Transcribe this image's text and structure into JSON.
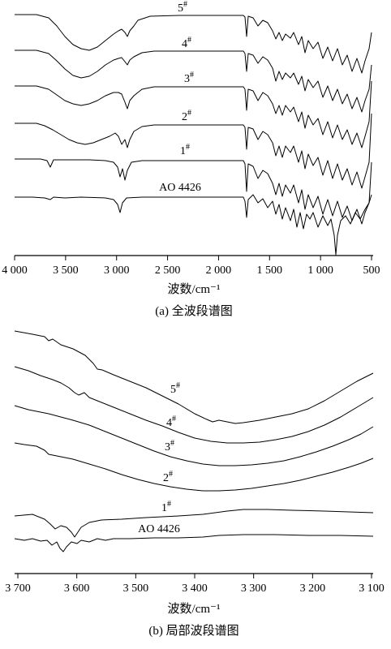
{
  "chart_data": [
    {
      "type": "line",
      "caption": "(a) 全波段谱图",
      "xlabel": "波数/cm⁻¹",
      "xlim": [
        4000,
        500
      ],
      "x_reversed": true,
      "xticks": [
        4000,
        3500,
        3000,
        2500,
        2000,
        1500,
        1000,
        500
      ],
      "xtick_labels": [
        "4 000",
        "3 500",
        "3 000",
        "2 500",
        "2 000",
        "1 500",
        "1 000",
        "500"
      ],
      "series_labels": [
        "5#",
        "4#",
        "3#",
        "2#",
        "1#",
        "AO 4426"
      ],
      "series": [
        {
          "name": "5#"
        },
        {
          "name": "4#"
        },
        {
          "name": "3#"
        },
        {
          "name": "2#"
        },
        {
          "name": "1#"
        },
        {
          "name": "AO 4426"
        }
      ]
    },
    {
      "type": "line",
      "caption": "(b) 局部波段谱图",
      "xlabel": "波数/cm⁻¹",
      "xlim": [
        3700,
        3100
      ],
      "x_reversed": true,
      "xticks": [
        3700,
        3600,
        3500,
        3400,
        3300,
        3200,
        3100
      ],
      "xtick_labels": [
        "3 700",
        "3 600",
        "3 500",
        "3 400",
        "3 300",
        "3 200",
        "3 100"
      ],
      "series_labels": [
        "5#",
        "4#",
        "3#",
        "2#",
        "1#",
        "AO 4426"
      ],
      "series": [
        {
          "name": "5#"
        },
        {
          "name": "4#"
        },
        {
          "name": "3#"
        },
        {
          "name": "2#"
        },
        {
          "name": "1#"
        },
        {
          "name": "AO 4426"
        }
      ]
    }
  ]
}
